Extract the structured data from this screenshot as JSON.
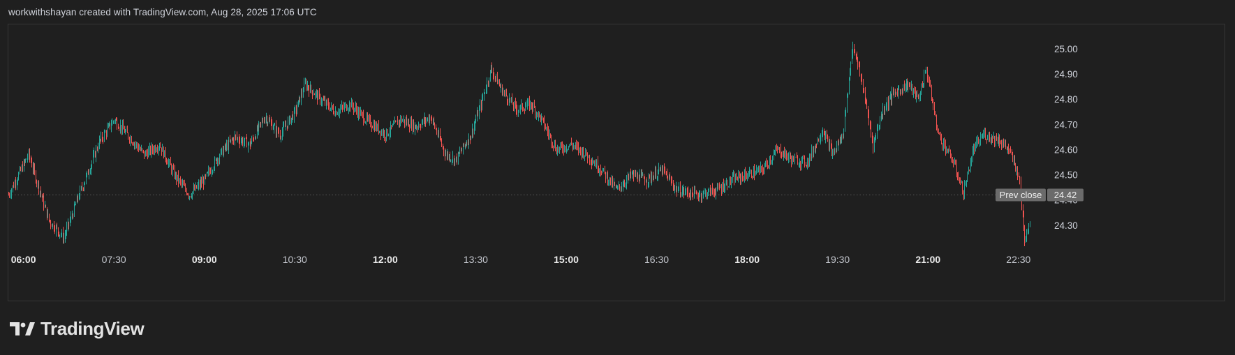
{
  "header": {
    "attribution": "workwithshayan created with TradingView.com, Aug 28, 2025 17:06 UTC"
  },
  "brand": {
    "name": "TradingView"
  },
  "colors": {
    "background": "#1f1f1f",
    "up": "#26a69a",
    "down": "#ef5350",
    "prev_close_line": "#5a5a5a",
    "label_bg": "#6b6b6b"
  },
  "chart_data": {
    "type": "candlestick",
    "title": "",
    "grid": false,
    "ylim": [
      24.2,
      25.08
    ],
    "y_ticks": [
      {
        "value": 25.0,
        "label": "25.00"
      },
      {
        "value": 24.9,
        "label": "24.90"
      },
      {
        "value": 24.8,
        "label": "24.80"
      },
      {
        "value": 24.7,
        "label": "24.70"
      },
      {
        "value": 24.6,
        "label": "24.60"
      },
      {
        "value": 24.5,
        "label": "24.50"
      },
      {
        "value": 24.4,
        "label": "24.40"
      },
      {
        "value": 24.3,
        "label": "24.30"
      }
    ],
    "x_ticks": [
      {
        "label": "06:00",
        "bold": true
      },
      {
        "label": "07:30",
        "bold": false
      },
      {
        "label": "09:00",
        "bold": true
      },
      {
        "label": "10:30",
        "bold": false
      },
      {
        "label": "12:00",
        "bold": true
      },
      {
        "label": "13:30",
        "bold": false
      },
      {
        "label": "15:00",
        "bold": true
      },
      {
        "label": "16:30",
        "bold": false
      },
      {
        "label": "18:00",
        "bold": true
      },
      {
        "label": "19:30",
        "bold": false
      },
      {
        "label": "21:00",
        "bold": true
      },
      {
        "label": "22:30",
        "bold": false
      }
    ],
    "x_range_hours": [
      5.75,
      23.0
    ],
    "prev_close": {
      "label": "Prev close",
      "value": 24.42,
      "value_label": "24.42"
    },
    "price_path": [
      [
        "05:45",
        24.42
      ],
      [
        "06:05",
        24.58
      ],
      [
        "06:25",
        24.32
      ],
      [
        "06:40",
        24.25
      ],
      [
        "06:55",
        24.42
      ],
      [
        "07:05",
        24.52
      ],
      [
        "07:15",
        24.63
      ],
      [
        "07:30",
        24.72
      ],
      [
        "07:45",
        24.65
      ],
      [
        "08:00",
        24.58
      ],
      [
        "08:15",
        24.62
      ],
      [
        "08:30",
        24.5
      ],
      [
        "08:45",
        24.42
      ],
      [
        "09:00",
        24.48
      ],
      [
        "09:15",
        24.58
      ],
      [
        "09:30",
        24.65
      ],
      [
        "09:45",
        24.62
      ],
      [
        "10:00",
        24.73
      ],
      [
        "10:15",
        24.66
      ],
      [
        "10:30",
        24.75
      ],
      [
        "10:40",
        24.86
      ],
      [
        "10:55",
        24.8
      ],
      [
        "11:10",
        24.75
      ],
      [
        "11:25",
        24.78
      ],
      [
        "11:40",
        24.72
      ],
      [
        "12:00",
        24.66
      ],
      [
        "12:15",
        24.72
      ],
      [
        "12:30",
        24.69
      ],
      [
        "12:45",
        24.73
      ],
      [
        "13:00",
        24.58
      ],
      [
        "13:10",
        24.56
      ],
      [
        "13:25",
        24.66
      ],
      [
        "13:35",
        24.78
      ],
      [
        "13:45",
        24.92
      ],
      [
        "13:55",
        24.84
      ],
      [
        "14:10",
        24.76
      ],
      [
        "14:25",
        24.78
      ],
      [
        "14:35",
        24.72
      ],
      [
        "14:50",
        24.6
      ],
      [
        "15:05",
        24.62
      ],
      [
        "15:20",
        24.58
      ],
      [
        "15:35",
        24.52
      ],
      [
        "15:50",
        24.44
      ],
      [
        "16:05",
        24.5
      ],
      [
        "16:20",
        24.48
      ],
      [
        "16:35",
        24.52
      ],
      [
        "16:50",
        24.44
      ],
      [
        "17:10",
        24.42
      ],
      [
        "17:30",
        24.44
      ],
      [
        "17:45",
        24.48
      ],
      [
        "18:00",
        24.5
      ],
      [
        "18:15",
        24.52
      ],
      [
        "18:30",
        24.6
      ],
      [
        "18:45",
        24.56
      ],
      [
        "19:00",
        24.55
      ],
      [
        "19:15",
        24.68
      ],
      [
        "19:25",
        24.58
      ],
      [
        "19:35",
        24.66
      ],
      [
        "19:45",
        25.02
      ],
      [
        "19:55",
        24.85
      ],
      [
        "20:05",
        24.62
      ],
      [
        "20:15",
        24.76
      ],
      [
        "20:25",
        24.82
      ],
      [
        "20:40",
        24.86
      ],
      [
        "20:50",
        24.8
      ],
      [
        "20:58",
        24.92
      ],
      [
        "21:10",
        24.66
      ],
      [
        "21:25",
        24.55
      ],
      [
        "21:35",
        24.43
      ],
      [
        "21:45",
        24.6
      ],
      [
        "21:55",
        24.66
      ],
      [
        "22:10",
        24.64
      ],
      [
        "22:20",
        24.6
      ],
      [
        "22:30",
        24.5
      ],
      [
        "22:36",
        24.25
      ],
      [
        "22:42",
        24.33
      ]
    ]
  }
}
